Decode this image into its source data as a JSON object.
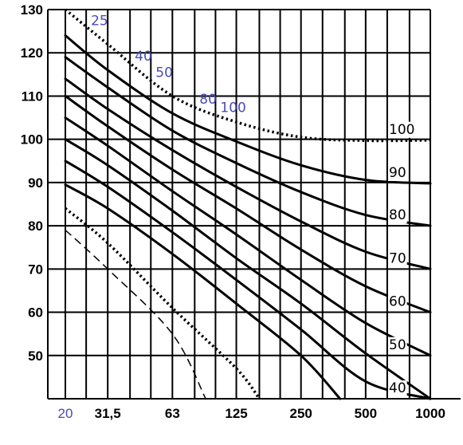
{
  "chart_data": {
    "type": "line",
    "title": "",
    "xlabel": "",
    "ylabel": "",
    "ylim": [
      40,
      130
    ],
    "xlim": [
      20,
      1000
    ],
    "x_log_scale": true,
    "grid": true,
    "y_ticks": [
      {
        "label": "130",
        "value": 130
      },
      {
        "label": "120",
        "value": 120
      },
      {
        "label": "110",
        "value": 110
      },
      {
        "label": "100",
        "value": 100
      },
      {
        "label": "90",
        "value": 90
      },
      {
        "label": "80",
        "value": 80
      },
      {
        "label": "70",
        "value": 70
      },
      {
        "label": "60",
        "value": 60
      },
      {
        "label": "50",
        "value": 50
      }
    ],
    "x_ticks": [
      {
        "label": "20",
        "value": 20,
        "color": "#4a4ab5"
      },
      {
        "label": "31,5",
        "value": 31.5,
        "color": "#000000"
      },
      {
        "label": "63",
        "value": 63,
        "color": "#000000"
      },
      {
        "label": "125",
        "value": 125,
        "color": "#000000"
      },
      {
        "label": "250",
        "value": 250,
        "color": "#000000"
      },
      {
        "label": "500",
        "value": 500,
        "color": "#000000"
      },
      {
        "label": "1000",
        "value": 1000,
        "color": "#000000"
      }
    ],
    "top_labels": [
      {
        "label": "25",
        "value": 25
      },
      {
        "label": "40",
        "value": 40
      },
      {
        "label": "50",
        "value": 50
      },
      {
        "label": "80",
        "value": 80
      },
      {
        "label": "100",
        "value": 100
      }
    ],
    "series": [
      {
        "label": "100",
        "style": "dotted",
        "points": [
          [
            20,
            130
          ],
          [
            31.5,
            122
          ],
          [
            63,
            110
          ],
          [
            125,
            104
          ],
          [
            250,
            100.5
          ],
          [
            500,
            99.7
          ],
          [
            1000,
            99.8
          ]
        ]
      },
      {
        "label": "90",
        "style": "solid",
        "points": [
          [
            20,
            124
          ],
          [
            31.5,
            116
          ],
          [
            63,
            106
          ],
          [
            125,
            99.5
          ],
          [
            250,
            94
          ],
          [
            500,
            90.6
          ],
          [
            1000,
            89.8
          ]
        ]
      },
      {
        "label": "80",
        "style": "solid",
        "points": [
          [
            20,
            119
          ],
          [
            31.5,
            112
          ],
          [
            63,
            102
          ],
          [
            125,
            94.5
          ],
          [
            250,
            87.8
          ],
          [
            500,
            82.5
          ],
          [
            1000,
            80
          ]
        ]
      },
      {
        "label": "70",
        "style": "solid",
        "points": [
          [
            20,
            114
          ],
          [
            31.5,
            107
          ],
          [
            63,
            97.5
          ],
          [
            125,
            89
          ],
          [
            250,
            81
          ],
          [
            500,
            74
          ],
          [
            1000,
            70
          ]
        ]
      },
      {
        "label": "60",
        "style": "solid",
        "points": [
          [
            20,
            110
          ],
          [
            31.5,
            103
          ],
          [
            63,
            93
          ],
          [
            125,
            84
          ],
          [
            250,
            74.5
          ],
          [
            500,
            66
          ],
          [
            1000,
            60
          ]
        ]
      },
      {
        "label": "50",
        "style": "solid",
        "points": [
          [
            20,
            105
          ],
          [
            31.5,
            98.5
          ],
          [
            63,
            88
          ],
          [
            125,
            78
          ],
          [
            250,
            67.5
          ],
          [
            500,
            57.5
          ],
          [
            1000,
            50
          ]
        ]
      },
      {
        "label": "40",
        "style": "solid",
        "points": [
          [
            20,
            100
          ],
          [
            31.5,
            94
          ],
          [
            63,
            83.5
          ],
          [
            125,
            72.5
          ],
          [
            250,
            62
          ],
          [
            500,
            50.5
          ],
          [
            1000,
            40
          ]
        ]
      },
      {
        "label": "",
        "style": "solid",
        "points": [
          [
            20,
            95
          ],
          [
            31.5,
            89
          ],
          [
            63,
            78.5
          ],
          [
            125,
            67.5
          ],
          [
            250,
            56
          ],
          [
            500,
            44
          ],
          [
            1000,
            40
          ]
        ]
      },
      {
        "label": "",
        "style": "solid",
        "points": [
          [
            20,
            89.5
          ],
          [
            31.5,
            84
          ],
          [
            63,
            73.5
          ],
          [
            125,
            62
          ],
          [
            250,
            50
          ],
          [
            380,
            40
          ]
        ]
      },
      {
        "label": "",
        "style": "dotted",
        "points": [
          [
            20,
            84
          ],
          [
            31.5,
            76
          ],
          [
            63,
            61
          ],
          [
            125,
            47
          ],
          [
            160,
            40
          ]
        ]
      },
      {
        "label": "",
        "style": "dashed",
        "points": [
          [
            20,
            79
          ],
          [
            31.5,
            70
          ],
          [
            63,
            55
          ],
          [
            90,
            40
          ]
        ]
      }
    ]
  }
}
